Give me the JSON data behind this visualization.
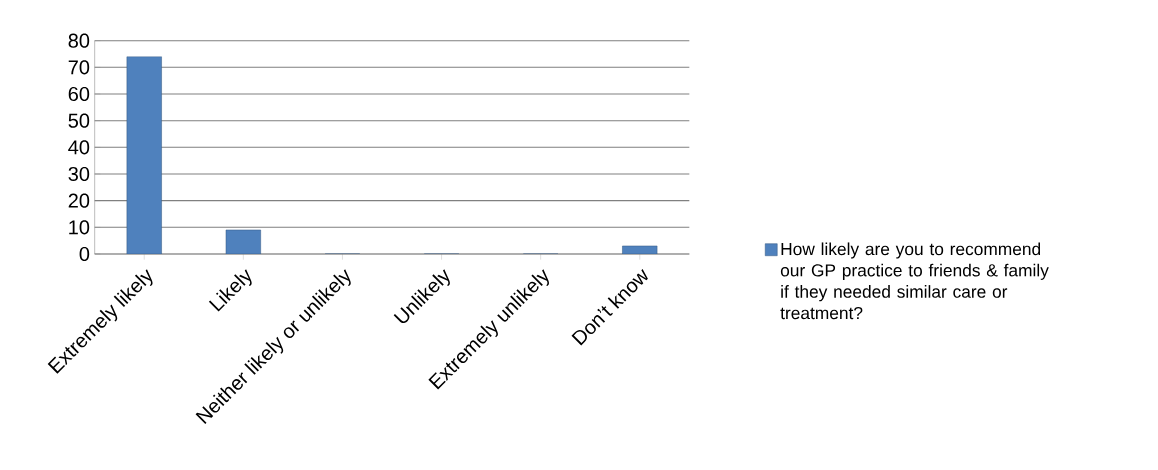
{
  "chart_data": {
    "type": "bar",
    "categories": [
      "Extremely likely",
      "Likely",
      "Neither likely or unlikely",
      "Unlikely",
      "Extremely unlikely",
      "Don’t know"
    ],
    "series": [
      {
        "name": "How likely are you to recommend our GP practice to friends & family if they needed similar care or treatment?",
        "color": "#4f81bd",
        "values": [
          74,
          9,
          0,
          0,
          0,
          3
        ]
      }
    ],
    "ylim": [
      0,
      80
    ],
    "yticks": [
      0,
      10,
      20,
      30,
      40,
      50,
      60,
      70,
      80
    ],
    "grid": "y",
    "legend": "right"
  }
}
